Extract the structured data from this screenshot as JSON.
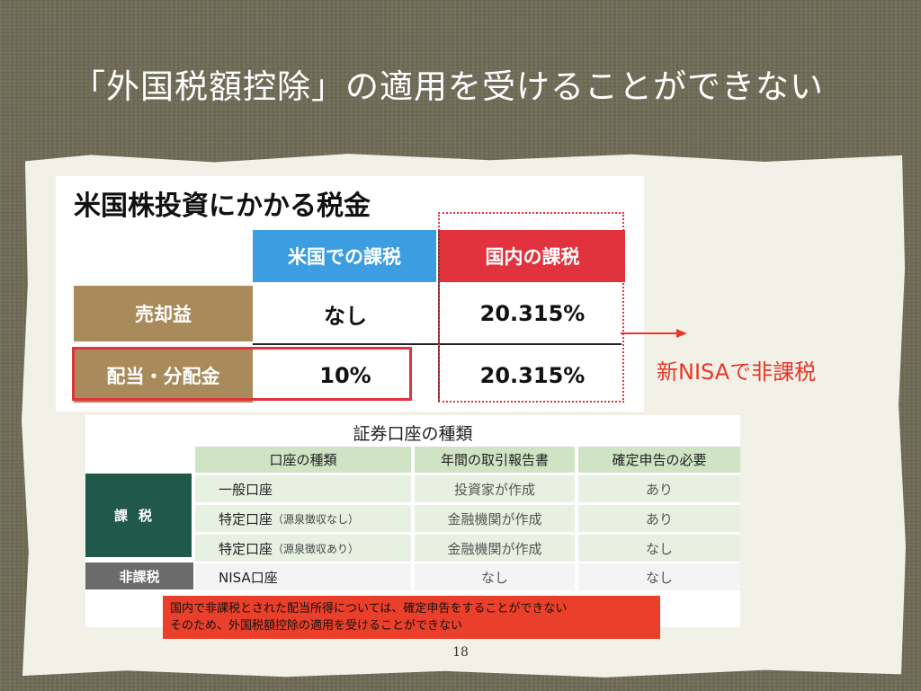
{
  "slide_title": "「外国税額控除」の適用を受けることができない",
  "top_table": {
    "title": "米国株投資にかかる税金",
    "col_us": "米国での課税",
    "col_domestic": "国内の課税",
    "rows": [
      {
        "label": "売却益",
        "us": "なし",
        "domestic": "20.315%"
      },
      {
        "label": "配当・分配金",
        "us": "10%",
        "domestic": "20.315%"
      }
    ]
  },
  "nisa_note": "新NISAで非課税",
  "bottom_table": {
    "title": "証券口座の種類",
    "headers": [
      "口座の種類",
      "年間の取引報告書",
      "確定申告の必要"
    ],
    "group_taxed": "課税",
    "group_untaxed": "非課税",
    "rows": [
      {
        "type": "一般口座",
        "sub": "",
        "report": "投資家が作成",
        "filing": "あり"
      },
      {
        "type": "特定口座",
        "sub": "（源泉徴収なし）",
        "report": "金融機関が作成",
        "filing": "あり"
      },
      {
        "type": "特定口座",
        "sub": "（源泉徴収あり）",
        "report": "金融機関が作成",
        "filing": "なし"
      },
      {
        "type": "NISA口座",
        "sub": "",
        "report": "なし",
        "filing": "なし"
      }
    ]
  },
  "footnote": {
    "line1": "国内で非課税とされた配当所得については、確定申告をすることができない",
    "line2": "そのため、外国税額控除の適用を受けることができない"
  },
  "page_number": "18",
  "colors": {
    "accent_red": "#e0333d",
    "blue": "#3c9ee0",
    "tan": "#a88a5b",
    "dark_green": "#20584a"
  }
}
